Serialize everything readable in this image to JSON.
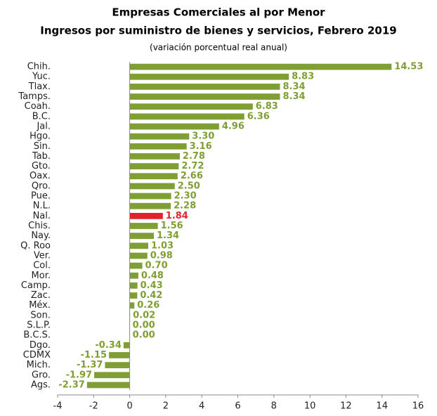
{
  "chart_data": {
    "type": "hbar",
    "title": "Empresas Comerciales al por Menor",
    "subtitle": "Ingresos por suministro de bienes y servicios, Febrero 2019",
    "note": "(variación porcentual real anual)",
    "categories": [
      "Chih.",
      "Yuc.",
      "Tlax.",
      "Tamps.",
      "Coah.",
      "B.C.",
      "Jal.",
      "Hgo.",
      "Sin.",
      "Tab.",
      "Gto.",
      "Oax.",
      "Qro.",
      "Pue.",
      "N.L.",
      "Nal.",
      "Chis.",
      "Nay.",
      "Q. Roo",
      "Ver.",
      "Col.",
      "Mor.",
      "Camp.",
      "Zac.",
      "Méx.",
      "Son.",
      "S.L.P.",
      "B.C.S.",
      "Dgo.",
      "CDMX",
      "Mich.",
      "Gro.",
      "Ags."
    ],
    "values": [
      14.53,
      8.83,
      8.34,
      8.34,
      6.83,
      6.36,
      4.96,
      3.3,
      3.16,
      2.78,
      2.72,
      2.66,
      2.5,
      2.3,
      2.28,
      1.84,
      1.56,
      1.34,
      1.03,
      0.98,
      0.7,
      0.48,
      0.43,
      0.42,
      0.26,
      0.02,
      0.0,
      0.0,
      -0.34,
      -1.15,
      -1.37,
      -1.97,
      -2.37
    ],
    "value_labels": [
      "14.53",
      "8.83",
      "8.34",
      "8.34",
      "6.83",
      "6.36",
      "4.96",
      "3.30",
      "3.16",
      "2.78",
      "2.72",
      "2.66",
      "2.50",
      "2.30",
      "2.28",
      "1.84",
      "1.56",
      "1.34",
      "1.03",
      "0.98",
      "0.70",
      "0.48",
      "0.43",
      "0.42",
      "0.26",
      "0.02",
      "0.00",
      "0.00",
      "-0.34",
      "-1.15",
      "-1.37",
      "-1.97",
      "-2.37"
    ],
    "colors": [
      "#7f9f34",
      "#7f9f34",
      "#7f9f34",
      "#7f9f34",
      "#7f9f34",
      "#7f9f34",
      "#7f9f34",
      "#7f9f34",
      "#7f9f34",
      "#7f9f34",
      "#7f9f34",
      "#7f9f34",
      "#7f9f34",
      "#7f9f34",
      "#7f9f34",
      "#e3212b",
      "#7f9f34",
      "#7f9f34",
      "#7f9f34",
      "#7f9f34",
      "#7f9f34",
      "#7f9f34",
      "#7f9f34",
      "#7f9f34",
      "#7f9f34",
      "#7f9f34",
      "#7f9f34",
      "#7f9f34",
      "#7f9f34",
      "#7f9f34",
      "#7f9f34",
      "#7f9f34",
      "#7f9f34"
    ],
    "xlim": [
      -4,
      16
    ],
    "xticks": [
      -4,
      -2,
      0,
      2,
      4,
      6,
      8,
      10,
      12,
      14,
      16
    ]
  }
}
